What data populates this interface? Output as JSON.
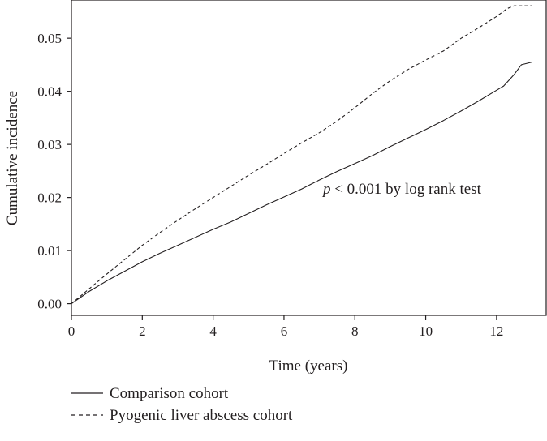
{
  "chart_data": {
    "type": "line",
    "title": "",
    "xlabel": "Time (years)",
    "ylabel": "Cumulative incidence",
    "xlim": [
      0,
      13.4
    ],
    "ylim": [
      -0.0022,
      0.0572
    ],
    "x_ticks": [
      0,
      2,
      4,
      6,
      8,
      10,
      12
    ],
    "x_tick_labels": [
      "0",
      "2",
      "4",
      "6",
      "8",
      "10",
      "12"
    ],
    "y_ticks": [
      0.0,
      0.01,
      0.02,
      0.03,
      0.04,
      0.05
    ],
    "y_tick_labels": [
      "0.00",
      "0.01",
      "0.02",
      "0.03",
      "0.04",
      "0.05"
    ],
    "grid": false,
    "legend_position": "bottom-left, below plot",
    "annotation": {
      "italic_part": "p",
      "rest": " < 0.001 by log rank test",
      "x": 7.1,
      "y": 0.0207
    },
    "series": [
      {
        "name": "Comparison cohort",
        "style": "solid",
        "x": [
          0,
          0.5,
          1,
          1.5,
          2,
          2.5,
          3,
          3.5,
          4,
          4.5,
          5,
          5.5,
          6,
          6.5,
          7,
          7.5,
          8,
          8.5,
          9,
          9.5,
          10,
          10.5,
          11,
          11.5,
          12,
          12.2,
          12.5,
          12.7,
          13
        ],
        "values": [
          0,
          0.0023,
          0.0043,
          0.0061,
          0.0079,
          0.0095,
          0.011,
          0.0125,
          0.014,
          0.0154,
          0.017,
          0.0186,
          0.0201,
          0.0216,
          0.0233,
          0.0249,
          0.0264,
          0.0279,
          0.0296,
          0.0312,
          0.0328,
          0.0345,
          0.0363,
          0.0382,
          0.0402,
          0.041,
          0.0432,
          0.045,
          0.0455
        ]
      },
      {
        "name": "Pyogenic liver abscess cohort",
        "style": "dashed",
        "x": [
          0,
          0.5,
          1,
          1.5,
          2,
          2.5,
          3,
          3.5,
          4,
          4.5,
          5,
          5.5,
          6,
          6.5,
          7,
          7.5,
          8,
          8.5,
          9,
          9.5,
          10,
          10.5,
          11,
          11.5,
          12,
          12.3,
          12.5,
          13
        ],
        "values": [
          0,
          0.0028,
          0.0056,
          0.0083,
          0.011,
          0.0134,
          0.0157,
          0.0179,
          0.02,
          0.0221,
          0.0242,
          0.0262,
          0.0283,
          0.0303,
          0.0322,
          0.0344,
          0.0369,
          0.0396,
          0.042,
          0.0441,
          0.0459,
          0.0476,
          0.05,
          0.052,
          0.0541,
          0.0556,
          0.0561,
          0.0561
        ]
      }
    ]
  }
}
